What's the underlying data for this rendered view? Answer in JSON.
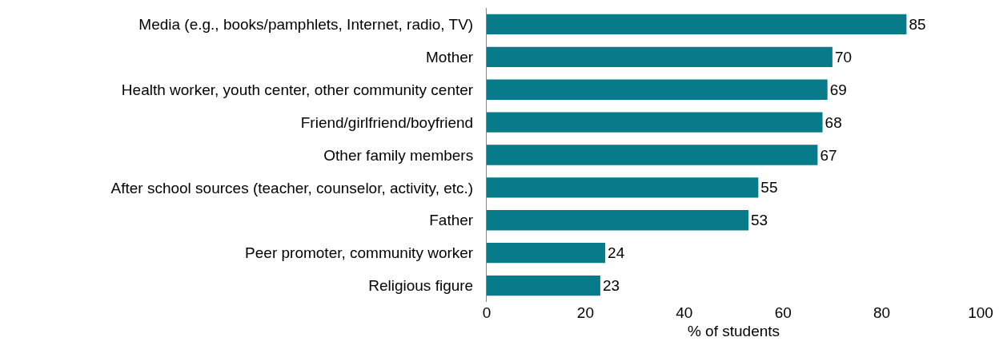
{
  "chart_data": {
    "type": "bar",
    "orientation": "horizontal",
    "xlabel": "% of students",
    "categories": [
      "Media (e.g., books/pamphlets, Internet, radio, TV)",
      "Mother",
      "Health worker, youth center, other community center",
      "Friend/girlfriend/boyfriend",
      "Other family members",
      "After school sources (teacher, counselor, activity, etc.)",
      "Father",
      "Peer promoter, community worker",
      "Religious figure"
    ],
    "values": [
      85,
      70,
      69,
      68,
      67,
      55,
      53,
      24,
      23
    ],
    "color": "#077b8a",
    "xlim": [
      0,
      100
    ],
    "xticks": [
      0,
      20,
      40,
      60,
      80,
      100
    ],
    "grid": false,
    "legend": false,
    "data_labels": true
  }
}
